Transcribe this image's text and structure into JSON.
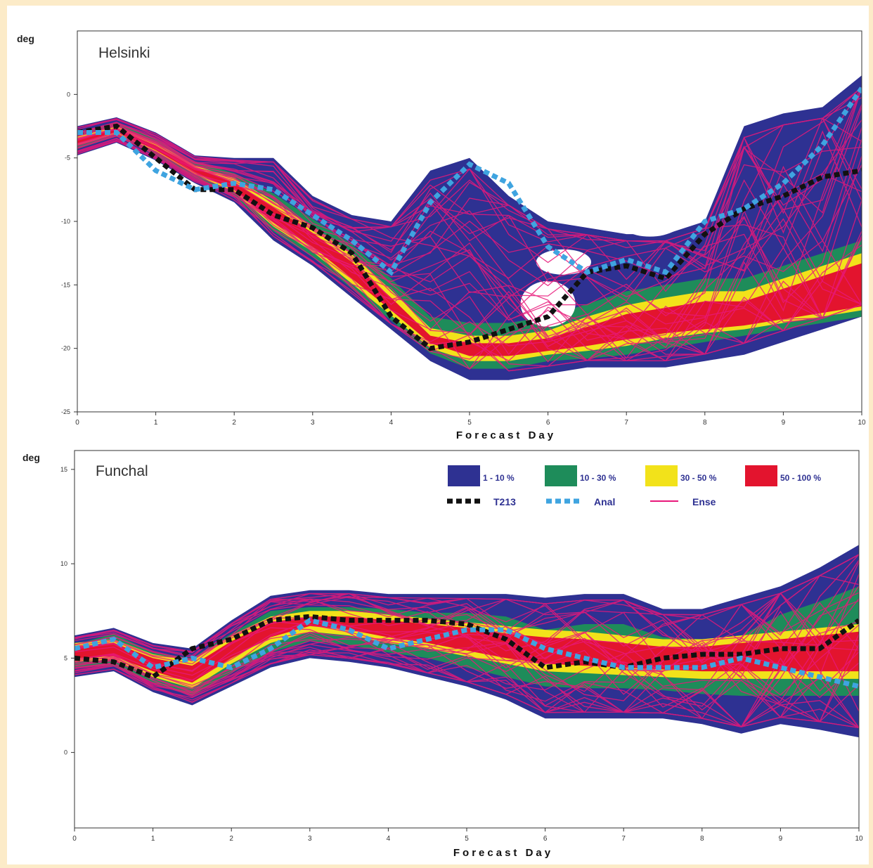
{
  "chart_data": [
    {
      "type": "area",
      "title": "Helsinki",
      "ylabel": "deg",
      "xlabel": "Forecast Day",
      "xlim": [
        0,
        10
      ],
      "ylim": [
        -25,
        5
      ],
      "xticks": [
        0,
        1,
        2,
        3,
        4,
        5,
        6,
        7,
        8,
        9,
        10
      ],
      "xtick_labels": [
        "0",
        "1",
        "2",
        "3",
        "4",
        "5",
        "6",
        "7",
        "8",
        "9",
        "10"
      ],
      "yticks": [
        0,
        -5,
        -10,
        -15,
        -20,
        -25
      ],
      "ytick_labels": [
        "0",
        "-5",
        "-10",
        "-15",
        "-20",
        "-25"
      ],
      "x": [
        0,
        0.5,
        1,
        1.5,
        2,
        2.5,
        3,
        3.5,
        4,
        4.5,
        5,
        5.5,
        6,
        6.5,
        7,
        7.5,
        8,
        8.5,
        9,
        9.5,
        10
      ],
      "bands": [
        {
          "name": "1 - 10 %",
          "color": "#2e3192",
          "lower": [
            -4.8,
            -3.8,
            -5.2,
            -7.0,
            -8.5,
            -11.5,
            -13.5,
            -16.0,
            -18.5,
            -21.0,
            -22.5,
            -22.5,
            -22.0,
            -21.5,
            -21.5,
            -21.5,
            -21.0,
            -20.5,
            -19.5,
            -18.5,
            -17.5
          ],
          "upper": [
            -2.5,
            -1.8,
            -3.0,
            -4.8,
            -5.0,
            -5.0,
            -8.0,
            -9.5,
            -10.0,
            -6.0,
            -5.0,
            -8.0,
            -10.0,
            -10.5,
            -11.0,
            -11.0,
            -10.0,
            -2.5,
            -1.5,
            -1.0,
            1.5
          ]
        },
        {
          "name": "10 - 30 %",
          "color": "#1e8c5a",
          "lower": [
            -4.3,
            -3.3,
            -4.8,
            -6.6,
            -8.0,
            -10.8,
            -12.8,
            -15.3,
            -17.8,
            -20.4,
            -21.6,
            -21.6,
            -21.0,
            -20.8,
            -20.5,
            -20.0,
            -19.5,
            -19.0,
            -18.5,
            -18.0,
            -17.5
          ],
          "upper": [
            -3.0,
            -2.2,
            -3.5,
            -5.3,
            -6.2,
            -7.8,
            -9.8,
            -11.8,
            -14.5,
            -17.5,
            -18.0,
            -18.0,
            -17.5,
            -16.5,
            -15.5,
            -15.0,
            -14.5,
            -14.5,
            -13.5,
            -12.5,
            -11.5
          ]
        },
        {
          "name": "30 - 50 %",
          "color": "#f2e21a",
          "lower": [
            -4.0,
            -3.1,
            -4.5,
            -6.3,
            -7.7,
            -10.4,
            -12.4,
            -14.9,
            -17.4,
            -20.0,
            -21.0,
            -21.0,
            -20.5,
            -20.2,
            -19.8,
            -19.2,
            -18.8,
            -18.5,
            -18.0,
            -17.5,
            -17.0
          ],
          "upper": [
            -3.3,
            -2.5,
            -3.8,
            -5.6,
            -6.6,
            -8.4,
            -10.4,
            -12.6,
            -15.4,
            -18.4,
            -19.0,
            -19.0,
            -18.6,
            -17.5,
            -16.6,
            -16.0,
            -15.5,
            -15.5,
            -14.5,
            -13.5,
            -12.5
          ]
        },
        {
          "name": "50 - 100 %",
          "color": "#e3142e",
          "lower": [
            -3.9,
            -3.0,
            -4.4,
            -6.2,
            -7.5,
            -10.1,
            -12.0,
            -14.5,
            -17.0,
            -19.6,
            -20.6,
            -20.6,
            -20.2,
            -19.8,
            -19.3,
            -18.8,
            -18.5,
            -18.2,
            -17.7,
            -17.2,
            -16.7
          ],
          "upper": [
            -3.5,
            -2.7,
            -4.0,
            -5.8,
            -6.9,
            -8.9,
            -10.9,
            -13.2,
            -16.0,
            -19.0,
            -19.6,
            -19.6,
            -19.2,
            -18.3,
            -17.3,
            -16.8,
            -16.3,
            -16.3,
            -15.3,
            -14.3,
            -13.3
          ]
        }
      ],
      "series": [
        {
          "name": "T213",
          "color": "#111111",
          "style": "dotted-thick",
          "values": [
            -3.0,
            -2.5,
            -5.0,
            -7.5,
            -7.5,
            -9.5,
            -10.5,
            -12.5,
            -17.5,
            -20.0,
            -19.5,
            -18.5,
            -17.5,
            -14.0,
            -13.5,
            -14.5,
            -11.0,
            -9.0,
            -8.0,
            -6.5,
            -6.0
          ]
        },
        {
          "name": "Anal",
          "color": "#3fa4e0",
          "style": "dotted-thick",
          "values": [
            -3.0,
            -3.0,
            -6.0,
            -7.5,
            -7.0,
            -7.5,
            -9.5,
            -11.5,
            -14.0,
            -8.5,
            -5.5,
            -7.0,
            -12.0,
            -14.0,
            -13.0,
            -14.0,
            -10.0,
            -9.0,
            -7.0,
            -4.0,
            0.5
          ]
        }
      ],
      "ensemble_label": "Ense",
      "ensemble_color": "#e8187a"
    },
    {
      "type": "area",
      "title": "Funchal",
      "ylabel": "deg",
      "xlabel": "Forecast Day",
      "xlim": [
        0,
        10
      ],
      "ylim": [
        -4,
        16
      ],
      "xticks": [
        0,
        1,
        2,
        3,
        4,
        5,
        6,
        7,
        8,
        9,
        10
      ],
      "xtick_labels": [
        "0",
        "1",
        "2",
        "3",
        "4",
        "5",
        "6",
        "7",
        "8",
        "9",
        "10"
      ],
      "yticks": [
        15,
        10,
        5,
        0
      ],
      "ytick_labels": [
        "15",
        "10",
        "5",
        "0"
      ],
      "x": [
        0,
        0.5,
        1,
        1.5,
        2,
        2.5,
        3,
        3.5,
        4,
        4.5,
        5,
        5.5,
        6,
        6.5,
        7,
        7.5,
        8,
        8.5,
        9,
        9.5,
        10
      ],
      "bands": [
        {
          "name": "1 - 10 %",
          "color": "#2e3192",
          "lower": [
            4.0,
            4.3,
            3.2,
            2.5,
            3.5,
            4.5,
            5.0,
            4.8,
            4.5,
            4.0,
            3.5,
            2.8,
            1.8,
            1.8,
            1.8,
            1.8,
            1.5,
            1.0,
            1.5,
            1.2,
            0.8
          ],
          "upper": [
            6.2,
            6.6,
            5.8,
            5.5,
            7.0,
            8.3,
            8.6,
            8.6,
            8.4,
            8.4,
            8.4,
            8.4,
            8.2,
            8.4,
            8.4,
            7.6,
            7.6,
            8.2,
            8.8,
            9.8,
            11.0
          ]
        },
        {
          "name": "10 - 30 %",
          "color": "#1e8c5a",
          "lower": [
            4.5,
            4.6,
            3.7,
            3.0,
            4.2,
            5.3,
            5.9,
            5.7,
            5.3,
            5.0,
            4.5,
            4.0,
            3.5,
            3.4,
            3.4,
            3.3,
            3.1,
            3.0,
            3.0,
            3.0,
            3.0
          ]
        },
        {
          "name": "30 - 50 %",
          "color": "#f2e21a",
          "lower": [
            4.8,
            4.9,
            4.0,
            3.4,
            4.7,
            5.8,
            6.4,
            6.2,
            5.8,
            5.5,
            5.1,
            4.7,
            4.3,
            4.2,
            4.1,
            4.0,
            3.9,
            3.9,
            3.9,
            3.9,
            3.9
          ],
          "upper": [
            5.8,
            6.0,
            5.2,
            4.9,
            6.2,
            7.2,
            7.5,
            7.5,
            7.3,
            7.1,
            6.9,
            6.7,
            6.5,
            6.4,
            6.2,
            6.0,
            6.0,
            6.2,
            6.4,
            6.6,
            6.8
          ]
        },
        {
          "name": "50 - 100 %",
          "color": "#e3142e",
          "lower": [
            5.0,
            5.1,
            4.3,
            3.7,
            5.0,
            6.1,
            6.7,
            6.5,
            6.1,
            5.8,
            5.4,
            5.0,
            4.7,
            4.6,
            4.5,
            4.4,
            4.3,
            4.3,
            4.3,
            4.3,
            4.3
          ],
          "upper": [
            5.6,
            5.8,
            5.0,
            4.6,
            5.9,
            6.9,
            7.2,
            7.2,
            7.0,
            6.8,
            6.6,
            6.3,
            6.1,
            6.0,
            5.8,
            5.6,
            5.6,
            5.8,
            6.0,
            6.2,
            6.4
          ]
        }
      ],
      "series": [
        {
          "name": "T213",
          "color": "#111111",
          "style": "dotted-thick",
          "values": [
            5.0,
            4.8,
            4.0,
            5.5,
            6.0,
            7.0,
            7.2,
            7.0,
            7.0,
            7.0,
            6.8,
            6.0,
            4.5,
            4.8,
            4.5,
            5.0,
            5.2,
            5.2,
            5.5,
            5.5,
            7.0
          ]
        },
        {
          "name": "Anal",
          "color": "#3fa4e0",
          "style": "dotted-thick",
          "values": [
            5.5,
            6.0,
            4.5,
            5.0,
            4.5,
            5.5,
            7.0,
            6.5,
            5.5,
            6.0,
            6.5,
            6.5,
            5.5,
            5.0,
            4.5,
            4.5,
            4.5,
            5.0,
            4.5,
            4.0,
            3.5
          ]
        }
      ],
      "ensemble_label": "Ense",
      "ensemble_color": "#e8187a"
    }
  ]
}
